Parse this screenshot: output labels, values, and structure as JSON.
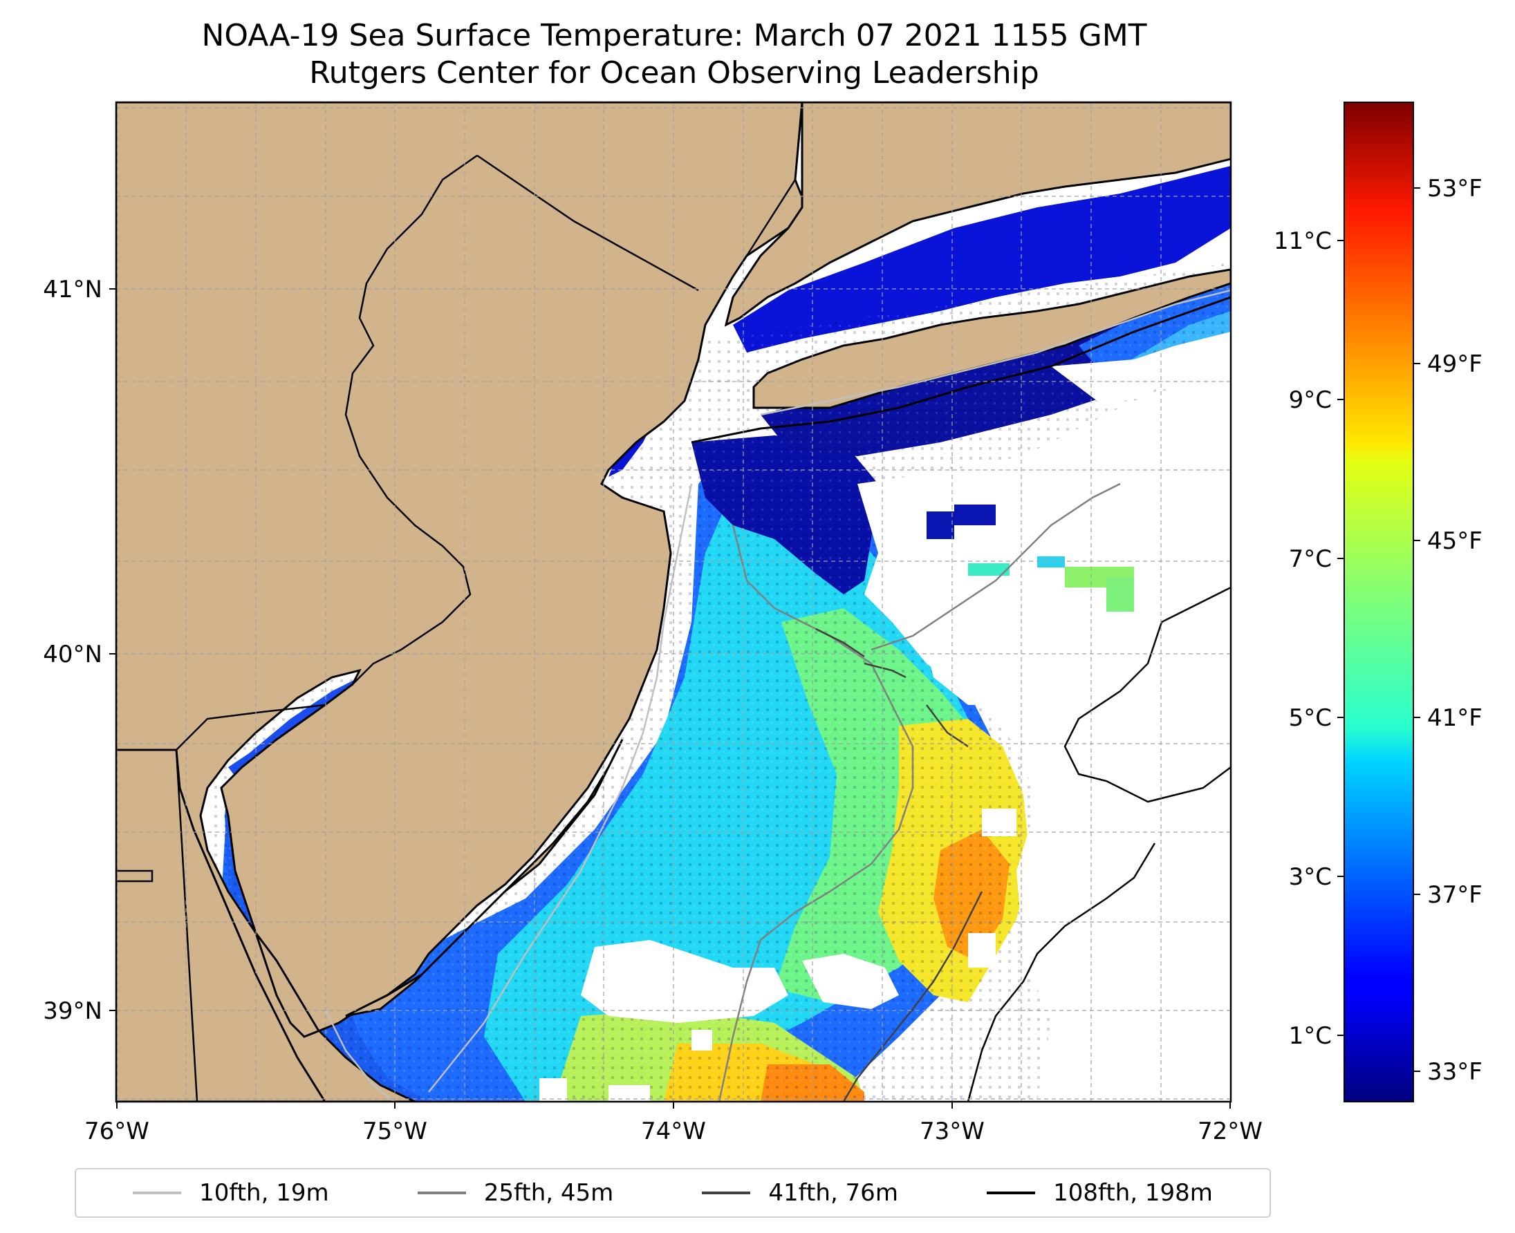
{
  "title": {
    "line1": "NOAA-19 Sea Surface Temperature: March 07 2021 1155 GMT",
    "line2": "Rutgers Center for Ocean Observing Leadership"
  },
  "axes": {
    "x_ticks": [
      "76°W",
      "75°W",
      "74°W",
      "73°W",
      "72°W"
    ],
    "y_ticks": [
      "41°N",
      "40°N",
      "39°N"
    ]
  },
  "colorbar": {
    "celsius_ticks": [
      "11°C",
      "9°C",
      "7°C",
      "5°C",
      "3°C",
      "1°C"
    ],
    "fahrenheit_ticks": [
      "53°F",
      "49°F",
      "45°F",
      "41°F",
      "37°F",
      "33°F"
    ],
    "colormap": "jet"
  },
  "legend": [
    {
      "label": "10fth, 19m",
      "color": "#c0c0c0"
    },
    {
      "label": "25fth, 45m",
      "color": "#808080"
    },
    {
      "label": "41fth, 76m",
      "color": "#404040"
    },
    {
      "label": "108fth, 198m",
      "color": "#000000"
    }
  ],
  "colors": {
    "land": "#d2b48c",
    "no_data": "#ffffff",
    "gridline": "#a0a0a0"
  }
}
